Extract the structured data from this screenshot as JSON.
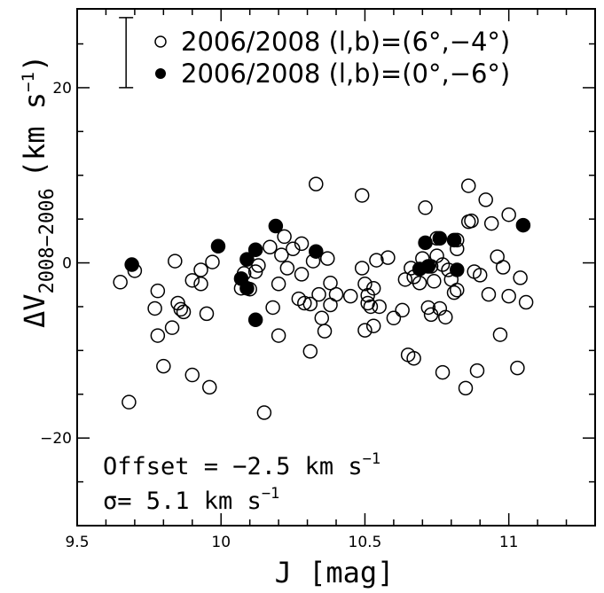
{
  "chart_data": {
    "type": "scatter",
    "xlabel": "J [mag]",
    "ylabel_parts": {
      "delta": "ΔV",
      "sub": "2008−2006",
      "units": "(km s",
      "exp": "−1",
      "close": ")"
    },
    "xlim": [
      9.5,
      11.3
    ],
    "ylim": [
      -30,
      29
    ],
    "x_ticks": [
      9.5,
      10,
      10.5,
      11
    ],
    "x_tick_labels": [
      "9.5",
      "10",
      "10.5",
      "11"
    ],
    "y_ticks": [
      -20,
      0,
      20
    ],
    "y_tick_labels": [
      "−20",
      "0",
      "20"
    ],
    "error_bar": {
      "x": 9.67,
      "y_low": 20,
      "y_high": 28,
      "description": "typical uncertainty"
    },
    "legend": [
      {
        "label": "2006/2008 (l,b)=(6°,−4°)",
        "marker": "open"
      },
      {
        "label": "2006/2008 (l,b)=(0°,−6°)",
        "marker": "filled"
      }
    ],
    "annotations": {
      "offset": {
        "prefix": "Offset = −2.5 km s",
        "exp": "−1"
      },
      "sigma": {
        "prefix": "σ= 5.1 km s",
        "exp": "−1"
      }
    },
    "series": [
      {
        "name": "2006/2008 (l,b)=(6°,−4°)",
        "marker": "open",
        "points": [
          [
            9.65,
            -2.2
          ],
          [
            9.68,
            -15.9
          ],
          [
            9.7,
            -0.9
          ],
          [
            9.77,
            -5.2
          ],
          [
            9.78,
            -3.2
          ],
          [
            9.78,
            -8.3
          ],
          [
            9.8,
            -11.8
          ],
          [
            9.83,
            -7.4
          ],
          [
            9.84,
            0.2
          ],
          [
            9.85,
            -4.6
          ],
          [
            9.86,
            -5.3
          ],
          [
            9.87,
            -5.6
          ],
          [
            9.9,
            -12.8
          ],
          [
            9.9,
            -2.0
          ],
          [
            9.93,
            -2.4
          ],
          [
            9.93,
            -0.8
          ],
          [
            9.95,
            -5.8
          ],
          [
            9.96,
            -14.2
          ],
          [
            9.97,
            0.1
          ],
          [
            10.07,
            -2.9
          ],
          [
            10.08,
            -1.2
          ],
          [
            10.1,
            -3.0
          ],
          [
            10.12,
            -1.0
          ],
          [
            10.13,
            -0.3
          ],
          [
            10.15,
            -17.1
          ],
          [
            10.17,
            1.8
          ],
          [
            10.18,
            -5.1
          ],
          [
            10.2,
            -2.4
          ],
          [
            10.2,
            -8.3
          ],
          [
            10.21,
            0.9
          ],
          [
            10.22,
            3.0
          ],
          [
            10.23,
            -0.6
          ],
          [
            10.25,
            1.6
          ],
          [
            10.27,
            -4.1
          ],
          [
            10.28,
            -1.3
          ],
          [
            10.28,
            2.2
          ],
          [
            10.29,
            -4.6
          ],
          [
            10.31,
            -10.1
          ],
          [
            10.31,
            -4.7
          ],
          [
            10.32,
            0.2
          ],
          [
            10.33,
            9.0
          ],
          [
            10.34,
            -3.6
          ],
          [
            10.35,
            -6.3
          ],
          [
            10.36,
            -7.8
          ],
          [
            10.37,
            0.5
          ],
          [
            10.38,
            -2.3
          ],
          [
            10.38,
            -4.8
          ],
          [
            10.4,
            -3.6
          ],
          [
            10.45,
            -3.8
          ],
          [
            10.49,
            7.7
          ],
          [
            10.49,
            -0.6
          ],
          [
            10.5,
            -2.4
          ],
          [
            10.5,
            -7.7
          ],
          [
            10.51,
            -4.6
          ],
          [
            10.51,
            -3.7
          ],
          [
            10.52,
            -5.0
          ],
          [
            10.53,
            -7.2
          ],
          [
            10.53,
            -2.9
          ],
          [
            10.54,
            0.3
          ],
          [
            10.55,
            -5.0
          ],
          [
            10.58,
            0.6
          ],
          [
            10.6,
            -6.3
          ],
          [
            10.63,
            -5.4
          ],
          [
            10.64,
            -1.9
          ],
          [
            10.65,
            -10.5
          ],
          [
            10.66,
            -0.6
          ],
          [
            10.67,
            -10.9
          ],
          [
            10.67,
            -1.6
          ],
          [
            10.69,
            -2.3
          ],
          [
            10.7,
            0.5
          ],
          [
            10.71,
            6.3
          ],
          [
            10.72,
            -5.1
          ],
          [
            10.73,
            -5.9
          ],
          [
            10.73,
            -0.4
          ],
          [
            10.74,
            -2.1
          ],
          [
            10.75,
            0.8
          ],
          [
            10.75,
            2.8
          ],
          [
            10.76,
            -5.2
          ],
          [
            10.77,
            -12.5
          ],
          [
            10.77,
            -0.2
          ],
          [
            10.78,
            -6.2
          ],
          [
            10.79,
            -0.8
          ],
          [
            10.8,
            -1.9
          ],
          [
            10.81,
            -3.4
          ],
          [
            10.82,
            -3.1
          ],
          [
            10.82,
            1.6
          ],
          [
            10.82,
            2.6
          ],
          [
            10.85,
            -14.3
          ],
          [
            10.86,
            8.8
          ],
          [
            10.86,
            4.7
          ],
          [
            10.87,
            4.8
          ],
          [
            10.88,
            -1.0
          ],
          [
            10.89,
            -12.3
          ],
          [
            10.9,
            -1.4
          ],
          [
            10.92,
            7.2
          ],
          [
            10.93,
            -3.6
          ],
          [
            10.94,
            4.5
          ],
          [
            10.96,
            0.7
          ],
          [
            10.97,
            -8.2
          ],
          [
            10.98,
            -0.5
          ],
          [
            11.0,
            -3.8
          ],
          [
            11.0,
            5.5
          ],
          [
            11.03,
            -12.0
          ],
          [
            11.04,
            -1.7
          ],
          [
            11.06,
            -4.5
          ]
        ]
      },
      {
        "name": "2006/2008 (l,b)=(0°,−6°)",
        "marker": "filled",
        "points": [
          [
            9.69,
            -0.2
          ],
          [
            9.99,
            1.9
          ],
          [
            10.07,
            -1.8
          ],
          [
            10.09,
            -2.9
          ],
          [
            10.09,
            0.4
          ],
          [
            10.12,
            1.5
          ],
          [
            10.12,
            -6.5
          ],
          [
            10.19,
            4.2
          ],
          [
            10.33,
            1.3
          ],
          [
            10.69,
            -0.7
          ],
          [
            10.71,
            2.3
          ],
          [
            10.72,
            -0.4
          ],
          [
            10.76,
            2.8
          ],
          [
            10.81,
            2.6
          ],
          [
            10.82,
            -0.8
          ],
          [
            11.05,
            4.3
          ]
        ]
      }
    ]
  }
}
